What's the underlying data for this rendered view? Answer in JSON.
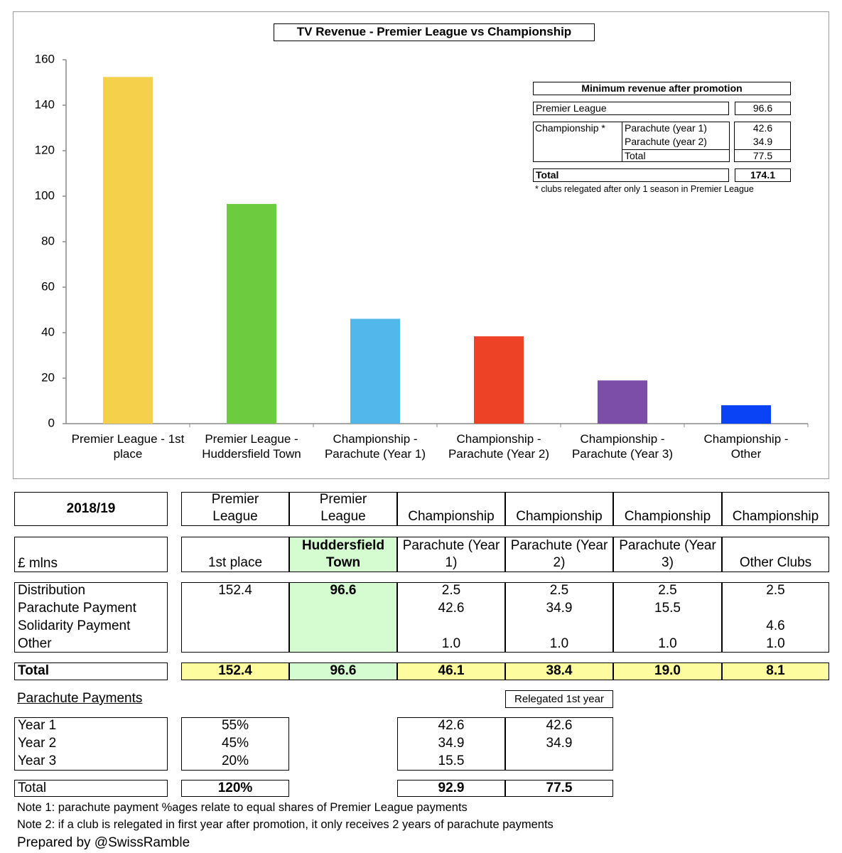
{
  "chart_data": {
    "type": "bar",
    "title": "TV Revenue - Premier League vs Championship",
    "categories": [
      "Premier League - 1st place",
      "Premier League - Huddersfield Town",
      "Championship - Parachute (Year 1)",
      "Championship - Parachute (Year 2)",
      "Championship - Parachute (Year 3)",
      "Championship - Other"
    ],
    "values": [
      152.4,
      96.6,
      46.1,
      38.4,
      19.0,
      8.1
    ],
    "colors": [
      "#f5d04a",
      "#6ccb3e",
      "#52b8ec",
      "#ee4226",
      "#7d4ea8",
      "#0a43f5"
    ],
    "ylim": [
      0,
      160
    ],
    "yticks": [
      0,
      20,
      40,
      60,
      80,
      100,
      120,
      140,
      160
    ],
    "grid": false,
    "inset": {
      "title": "Minimum revenue after promotion",
      "rows": [
        {
          "label": "Premier League",
          "value": "96.6"
        }
      ],
      "group": {
        "label": "Championship *",
        "rows": [
          {
            "label": "Parachute (year 1)",
            "value": "42.6"
          },
          {
            "label": "Parachute (year 2)",
            "value": "34.9"
          },
          {
            "label": "Total",
            "value": "77.5"
          }
        ]
      },
      "total": {
        "label": "Total",
        "value": "174.1"
      },
      "footnote": "* clubs relegated after only 1 season in Premier League"
    }
  },
  "table": {
    "corner": "2018/19",
    "unit": "£ mlns",
    "leagues": [
      "Premier League",
      "Premier League",
      "Championship",
      "Championship",
      "Championship",
      "Championship"
    ],
    "columns": [
      "1st place",
      "Huddersfield Town",
      "Parachute (Year 1)",
      "Parachute (Year 2)",
      "Parachute (Year 3)",
      "Other Clubs"
    ],
    "rows": [
      {
        "label": "Distribution",
        "cells": [
          "152.4",
          "96.6",
          "2.5",
          "2.5",
          "2.5",
          "2.5"
        ]
      },
      {
        "label": "Parachute Payment",
        "cells": [
          null,
          null,
          "42.6",
          "34.9",
          "15.5",
          null
        ]
      },
      {
        "label": "Solidarity Payment",
        "cells": [
          null,
          null,
          null,
          null,
          null,
          "4.6"
        ]
      },
      {
        "label": "Other",
        "cells": [
          null,
          null,
          "1.0",
          "1.0",
          "1.0",
          "1.0"
        ]
      }
    ],
    "total": {
      "label": "Total",
      "cells": [
        "152.4",
        "96.6",
        "46.1",
        "38.4",
        "19.0",
        "8.1"
      ]
    },
    "highlight_column": 1
  },
  "parachute": {
    "title": "Parachute Payments",
    "relegated_label": "Relegated 1st year",
    "rows": [
      {
        "label": "Year 1",
        "share": "55%",
        "standard": "42.6",
        "relegated": "42.6"
      },
      {
        "label": "Year 2",
        "share": "45%",
        "standard": "34.9",
        "relegated": "34.9"
      },
      {
        "label": "Year 3",
        "share": "20%",
        "standard": "15.5",
        "relegated": null
      }
    ],
    "total": {
      "label": "Total",
      "share": "120%",
      "standard": "92.9",
      "relegated": "77.5"
    }
  },
  "notes": [
    "Note 1: parachute payment %ages relate to equal shares of Premier League payments",
    "Note 2: if a club is relegated in first year after promotion, it only receives 2 years of parachute payments"
  ],
  "credit": "Prepared by @SwissRamble"
}
